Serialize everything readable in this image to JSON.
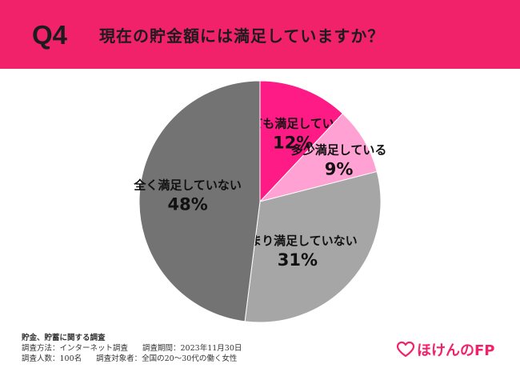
{
  "header": {
    "badge": "Q4",
    "question": "現在の貯金額には満足していますか？",
    "color": "#f2226a"
  },
  "chart_data": {
    "type": "pie",
    "start_angle_deg": 0,
    "direction": "clockwise",
    "slices": [
      {
        "label": "とても満足している",
        "value": 12,
        "value_label": "12%",
        "color": "#ff1b86"
      },
      {
        "label": "多少満足している",
        "value": 9,
        "value_label": "9%",
        "color": "#ffa1d2"
      },
      {
        "label": "あまり満足していない",
        "value": 31,
        "value_label": "31%",
        "color": "#a6a6a6"
      },
      {
        "label": "全く満足していない",
        "value": 48,
        "value_label": "48%",
        "color": "#737373"
      }
    ]
  },
  "footer": {
    "title": "貯金、貯蓄に関する調査",
    "method": "調査方法：インターネット調査",
    "period": "調査期間：2023年11月30日",
    "count": "調査人数：100名",
    "target": "調査対象者：全国の20〜30代の働く女性"
  },
  "logo": {
    "text": "ほけんのFP",
    "icon": "heart-icon"
  }
}
